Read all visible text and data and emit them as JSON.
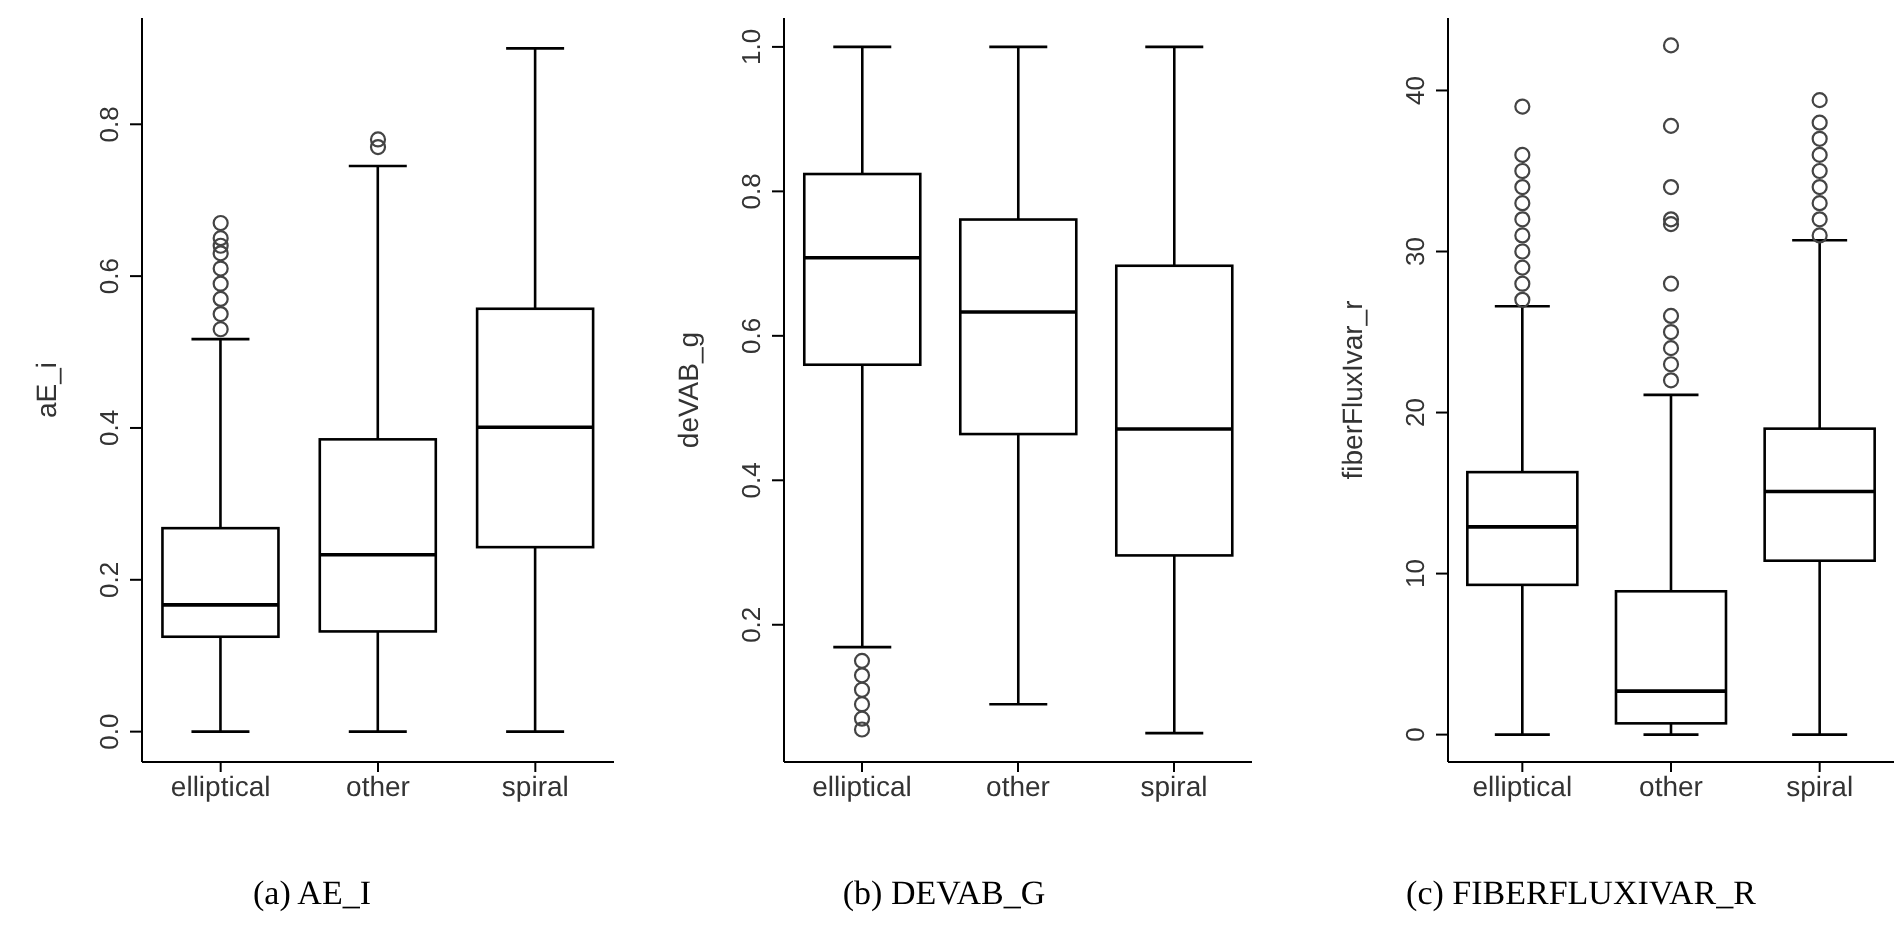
{
  "chart_data": [
    {
      "type": "box",
      "ylabel": "aE_i",
      "categories": [
        "elliptical",
        "other",
        "spiral"
      ],
      "ylim": [
        -0.04,
        0.94
      ],
      "yticks": [
        {
          "value": 0,
          "label": "0.0"
        },
        0.2,
        0.4,
        0.6,
        0.8
      ],
      "annotations": [
        "(a) AE_I"
      ],
      "boxes": [
        {
          "low": 0,
          "q1": 0.125,
          "median": 0.167,
          "q3": 0.268,
          "high": 0.517,
          "outliers": [
            0.53,
            0.55,
            0.57,
            0.59,
            0.61,
            0.63,
            0.64,
            0.65,
            0.67
          ]
        },
        {
          "low": 0,
          "q1": 0.132,
          "median": 0.233,
          "q3": 0.385,
          "high": 0.745,
          "outliers": [
            0.77,
            0.78
          ]
        },
        {
          "low": 0,
          "q1": 0.243,
          "median": 0.401,
          "q3": 0.557,
          "high": 0.9
        }
      ]
    },
    {
      "type": "box",
      "ylabel": "deVAB_g",
      "categories": [
        "elliptical",
        "other",
        "spiral"
      ],
      "ylim": [
        0.01,
        1.04
      ],
      "yticks": [
        0.2,
        0.4,
        0.6,
        0.8,
        {
          "value": 1,
          "label": "1.0"
        }
      ],
      "annotations": [
        "(b) DEVAB_G"
      ],
      "boxes": [
        {
          "low": 0.169,
          "q1": 0.56,
          "median": 0.708,
          "q3": 0.824,
          "high": 1,
          "outliers": [
            0.15,
            0.13,
            0.11,
            0.09,
            0.07,
            0.055
          ]
        },
        {
          "low": 0.09,
          "q1": 0.464,
          "median": 0.633,
          "q3": 0.761,
          "high": 1
        },
        {
          "low": 0.05,
          "q1": 0.296,
          "median": 0.471,
          "q3": 0.697,
          "high": 1
        }
      ]
    },
    {
      "type": "box",
      "ylabel": "fiberFluxIvar_r",
      "categories": [
        "elliptical",
        "other",
        "spiral"
      ],
      "ylim": [
        -1.7,
        44.5
      ],
      "yticks": [
        0,
        10,
        20,
        30,
        40
      ],
      "annotations": [
        "(c) FIBERFLUXIVAR_R"
      ],
      "boxes": [
        {
          "low": 0,
          "q1": 9.3,
          "median": 12.9,
          "q3": 16.3,
          "high": 26.6,
          "outliers": [
            27,
            28,
            29,
            30,
            31,
            32,
            33,
            34,
            35,
            36,
            39
          ]
        },
        {
          "low": 0,
          "q1": 0.7,
          "median": 2.7,
          "q3": 8.9,
          "high": 21.1,
          "outliers": [
            22,
            23,
            24,
            25,
            26,
            28,
            31.7,
            32,
            34,
            37.8,
            42.8
          ]
        },
        {
          "low": 0,
          "q1": 10.8,
          "median": 15.1,
          "q3": 19,
          "high": 30.7,
          "outliers": [
            31,
            32,
            33,
            34,
            35,
            36,
            37,
            38,
            39.4
          ]
        }
      ]
    }
  ]
}
